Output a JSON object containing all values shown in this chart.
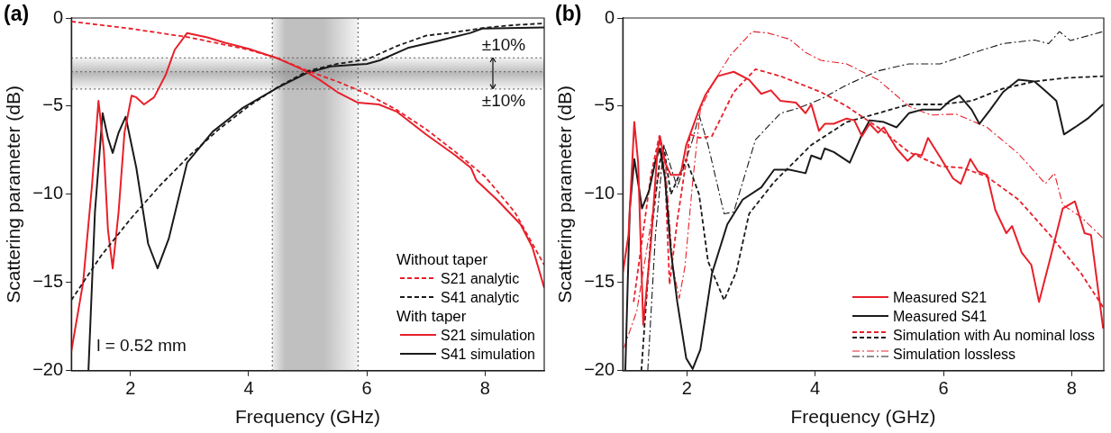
{
  "chart_data": [
    {
      "type": "line",
      "title": "(a)",
      "xlabel": "Frequency (GHz)",
      "ylabel": "Scattering parameter (dB)",
      "xlim": [
        1,
        9
      ],
      "ylim": [
        -20,
        0
      ],
      "xticks": [
        2,
        4,
        6,
        8
      ],
      "yticks": [
        {
          "value": 0,
          "label": "0"
        },
        {
          "value": -5,
          "label": "−5"
        },
        {
          "value": -10,
          "label": "−10"
        },
        {
          "value": -15,
          "label": "−15"
        },
        {
          "value": -20,
          "label": "−20"
        }
      ],
      "legend": "bottom right",
      "bands": [
        {
          "axis": "x",
          "from": 4.4,
          "to": 5.85,
          "color": "#8c8c8c"
        },
        {
          "axis": "y",
          "from": -4.03,
          "to": -2.26,
          "color": "#8c8c8c"
        }
      ],
      "ref_lines": [
        {
          "axis": "x",
          "value": 4.4,
          "color": "#555555",
          "line_style": "dotted"
        },
        {
          "axis": "x",
          "value": 5.85,
          "color": "#555555",
          "line_style": "dotted"
        },
        {
          "axis": "y",
          "value": -2.26,
          "color": "#555555",
          "line_style": "dotted"
        },
        {
          "axis": "y",
          "value": -3.05,
          "color": "#555555",
          "line_style": "dotted"
        },
        {
          "axis": "y",
          "value": -4.03,
          "color": "#555555",
          "line_style": "dotted"
        }
      ],
      "annotations": [
        "l = 0.52 mm",
        "Without taper",
        "With taper",
        "±10%",
        "±10%"
      ],
      "series": [
        {
          "name": "S21 analytic",
          "color": "#e8202a",
          "line_style": "dashed",
          "x": [
            1,
            2,
            3,
            4,
            4.5,
            5,
            5.5,
            6,
            6.5,
            7,
            7.5,
            8,
            8.5,
            9
          ],
          "values": [
            -0.2,
            -0.6,
            -1.1,
            -1.8,
            -2.3,
            -3.0,
            -3.6,
            -4.3,
            -5.2,
            -6.3,
            -7.6,
            -9.0,
            -11.0,
            -14.0
          ]
        },
        {
          "name": "S41 analytic",
          "color": "#1a1a1a",
          "line_style": "dashed",
          "x": [
            1,
            1.5,
            2,
            2.5,
            3,
            3.5,
            4,
            4.5,
            5,
            5.5,
            6,
            6.5,
            7,
            7.5,
            8,
            8.5,
            9
          ],
          "values": [
            -16,
            -13.5,
            -11.4,
            -9.5,
            -7.8,
            -6.3,
            -5.0,
            -3.9,
            -3.0,
            -2.6,
            -2.35,
            -1.6,
            -1.0,
            -0.8,
            -0.55,
            -0.4,
            -0.3
          ]
        },
        {
          "name": "S21 simulation",
          "color": "#e8202a",
          "line_style": "solid",
          "x": [
            1,
            1.2,
            1.35,
            1.46,
            1.55,
            1.62,
            1.7,
            1.8,
            1.9,
            2.02,
            2.1,
            2.23,
            2.4,
            2.6,
            2.75,
            2.96,
            3.3,
            3.6,
            4,
            4.5,
            4.9,
            5.2,
            5.5,
            5.85,
            6.2,
            6.5,
            7,
            7.5,
            7.76,
            7.85,
            8.2,
            8.6,
            8.8,
            9
          ],
          "values": [
            -18.9,
            -15,
            -9.5,
            -4.7,
            -7.5,
            -12,
            -14.2,
            -11,
            -6.5,
            -4.4,
            -4.5,
            -4.9,
            -4.5,
            -3.2,
            -1.8,
            -0.85,
            -1.1,
            -1.4,
            -1.75,
            -2.3,
            -2.9,
            -3.5,
            -4.2,
            -4.8,
            -4.9,
            -5.3,
            -6.6,
            -7.8,
            -8.5,
            -9.2,
            -10.3,
            -11.7,
            -13,
            -15.3
          ]
        },
        {
          "name": "S41 simulation",
          "color": "#1a1a1a",
          "line_style": "solid",
          "x": [
            1.29,
            1.4,
            1.53,
            1.62,
            1.7,
            1.8,
            1.92,
            2.1,
            2.3,
            2.46,
            2.65,
            2.96,
            3.39,
            3.9,
            4.49,
            5.0,
            5.39,
            6.0,
            6.22,
            6.69,
            7.2,
            7.75,
            7.95,
            9
          ],
          "values": [
            -20,
            -11,
            -5.4,
            -6.8,
            -7.65,
            -6.5,
            -5.6,
            -8.5,
            -12.8,
            -14.2,
            -12.5,
            -8.2,
            -6.45,
            -5.1,
            -3.95,
            -3.1,
            -2.74,
            -2.6,
            -2.4,
            -1.7,
            -1.3,
            -0.85,
            -0.6,
            -0.53
          ]
        }
      ]
    },
    {
      "type": "line",
      "title": "(b)",
      "xlabel": "Frequency (GHz)",
      "ylabel": "Scattering parameter (dB)",
      "xlim": [
        1,
        8.5
      ],
      "ylim": [
        -20,
        0
      ],
      "xticks": [
        2,
        4,
        6,
        8
      ],
      "yticks": [
        {
          "value": 0,
          "label": "0"
        },
        {
          "value": -5,
          "label": "−5"
        },
        {
          "value": -10,
          "label": "−10"
        },
        {
          "value": -15,
          "label": "−15"
        },
        {
          "value": -20,
          "label": "−20"
        }
      ],
      "legend": "bottom right",
      "series": [
        {
          "name": "Measured S21",
          "color": "#e8202a",
          "line_style": "solid",
          "x": [
            1.0,
            1.09,
            1.18,
            1.24,
            1.32,
            1.44,
            1.54,
            1.58,
            1.66,
            1.75,
            1.9,
            1.99,
            2.19,
            2.29,
            2.48,
            2.73,
            2.97,
            3.16,
            3.31,
            3.46,
            3.7,
            3.85,
            3.94,
            4.06,
            4.15,
            4.29,
            4.49,
            4.61,
            4.73,
            4.85,
            4.98,
            5.07,
            5.27,
            5.44,
            5.56,
            5.66,
            5.76,
            5.95,
            6.15,
            6.27,
            6.42,
            6.54,
            6.68,
            6.81,
            6.98,
            7.07,
            7.22,
            7.37,
            7.49,
            7.66,
            7.86,
            8.05,
            8.2,
            8.3,
            8.49
          ],
          "values": [
            -14.5,
            -12.3,
            -5.9,
            -8.2,
            -17.4,
            -12.7,
            -7.6,
            -6.7,
            -8.2,
            -8.9,
            -8.9,
            -7.2,
            -5.2,
            -4.35,
            -3.3,
            -3.05,
            -3.5,
            -4.3,
            -4.1,
            -4.7,
            -4.8,
            -5.4,
            -4.9,
            -6.4,
            -6.0,
            -6.0,
            -5.7,
            -5.8,
            -6.7,
            -6.0,
            -6.5,
            -6.2,
            -7.4,
            -8.1,
            -7.7,
            -7.8,
            -6.8,
            -7.9,
            -9.1,
            -9.4,
            -8.0,
            -8.7,
            -8.9,
            -10.9,
            -12.2,
            -11.8,
            -13.3,
            -14.0,
            -16.1,
            -13.7,
            -10.8,
            -10.4,
            -12.2,
            -12.3,
            -17.6
          ]
        },
        {
          "name": "Measured S41",
          "color": "#1a1a1a",
          "line_style": "solid",
          "x": [
            1.04,
            1.11,
            1.18,
            1.26,
            1.3,
            1.41,
            1.51,
            1.58,
            1.66,
            1.75,
            1.85,
            1.99,
            2.09,
            2.21,
            2.39,
            2.63,
            2.87,
            3.16,
            3.36,
            3.6,
            3.85,
            3.94,
            4.09,
            4.15,
            4.29,
            4.54,
            4.73,
            4.85,
            5.07,
            5.27,
            5.46,
            5.66,
            5.95,
            6.1,
            6.25,
            6.44,
            6.56,
            6.73,
            6.93,
            7.17,
            7.42,
            7.61,
            7.76,
            7.88,
            8.05,
            8.25,
            8.49
          ],
          "values": [
            -20,
            -10.8,
            -8.0,
            -9.8,
            -10.8,
            -9.8,
            -8.1,
            -7.4,
            -9.1,
            -13.2,
            -16.1,
            -19.3,
            -19.9,
            -18.8,
            -14.5,
            -11.7,
            -10.3,
            -9.6,
            -8.6,
            -8.6,
            -8.8,
            -7.8,
            -8.0,
            -7.4,
            -7.6,
            -8.2,
            -6.6,
            -5.8,
            -5.9,
            -6.2,
            -5.4,
            -5.2,
            -5.2,
            -4.7,
            -4.4,
            -5.2,
            -6.0,
            -5.2,
            -4.2,
            -3.5,
            -3.6,
            -4.2,
            -4.7,
            -6.6,
            -6.2,
            -5.7,
            -4.9
          ]
        },
        {
          "name": "Simulation with Au nominal loss",
          "color": "#e8202a",
          "line_style": "dashed",
          "x": [
            1.17,
            1.32,
            1.44,
            1.57,
            1.66,
            1.73,
            1.85,
            2.05,
            2.2,
            2.39,
            2.73,
            3.07,
            3.46,
            4.09,
            4.49,
            4.98,
            5.46,
            5.95,
            6.3,
            6.68,
            7.17,
            7.66,
            8.15,
            8.49
          ],
          "values": [
            -16.1,
            -12.1,
            -8.9,
            -6.7,
            -8.9,
            -15.1,
            -11.5,
            -6.6,
            -6.8,
            -6.7,
            -4.2,
            -2.9,
            -3.3,
            -4.2,
            -5.0,
            -6.2,
            -7.6,
            -8.4,
            -8.5,
            -9.0,
            -10.3,
            -12.3,
            -14.5,
            -16.4
          ]
        },
        {
          "color": "#1a1a1a",
          "line_style": "dashed",
          "x": [
            1.29,
            1.44,
            1.57,
            1.64,
            1.75,
            1.99,
            2.19,
            2.33,
            2.58,
            2.77,
            2.97,
            3.36,
            3.94,
            4.49,
            4.98,
            5.46,
            5.95,
            6.44,
            6.93,
            7.42,
            7.9,
            8.49
          ],
          "values": [
            -20,
            -12.3,
            -8.3,
            -7.3,
            -10.0,
            -8.0,
            -10.0,
            -13.8,
            -16.0,
            -14.4,
            -11.1,
            -9.3,
            -7.2,
            -5.9,
            -5.4,
            -4.9,
            -4.9,
            -4.7,
            -4.0,
            -3.6,
            -3.4,
            -3.3
          ]
        },
        {
          "name": "Simulation lossless",
          "color": "#e8202a",
          "line_style": "dashdot",
          "x": [
            1.02,
            1.22,
            1.41,
            1.56,
            1.66,
            1.78,
            1.88,
            1.97,
            2.09,
            2.21,
            2.39,
            2.68,
            3.02,
            3.26,
            3.6,
            3.85,
            4.09,
            4.49,
            4.98,
            5.46,
            5.8,
            6.2,
            6.68,
            7.17,
            7.59,
            7.73,
            7.86,
            8.15,
            8.49
          ],
          "values": [
            -18.7,
            -16.6,
            -12.3,
            -8.9,
            -8.0,
            -14.1,
            -15.9,
            -14.1,
            -9.3,
            -5.2,
            -3.8,
            -2.1,
            -0.77,
            -0.85,
            -1.2,
            -1.95,
            -2.4,
            -2.6,
            -3.5,
            -5.0,
            -5.5,
            -5.45,
            -6.2,
            -7.7,
            -9.4,
            -8.8,
            -10.6,
            -11.3,
            -12.5
          ]
        },
        {
          "color": "#1a1a1a",
          "line_style": "dashdot",
          "x": [
            1.39,
            1.51,
            1.64,
            1.85,
            2.09,
            2.19,
            2.33,
            2.58,
            2.73,
            3.07,
            3.46,
            3.75,
            4.09,
            4.49,
            4.98,
            5.46,
            5.95,
            6.44,
            6.93,
            7.42,
            7.64,
            7.81,
            7.98,
            8.49
          ],
          "values": [
            -20,
            -12.3,
            -7.2,
            -9.6,
            -6.9,
            -5.5,
            -7.2,
            -11.1,
            -11.0,
            -6.9,
            -5.4,
            -5.1,
            -4.6,
            -3.8,
            -3.0,
            -2.6,
            -2.6,
            -2.0,
            -1.45,
            -1.25,
            -1.45,
            -0.77,
            -1.28,
            -0.77
          ]
        }
      ]
    }
  ]
}
